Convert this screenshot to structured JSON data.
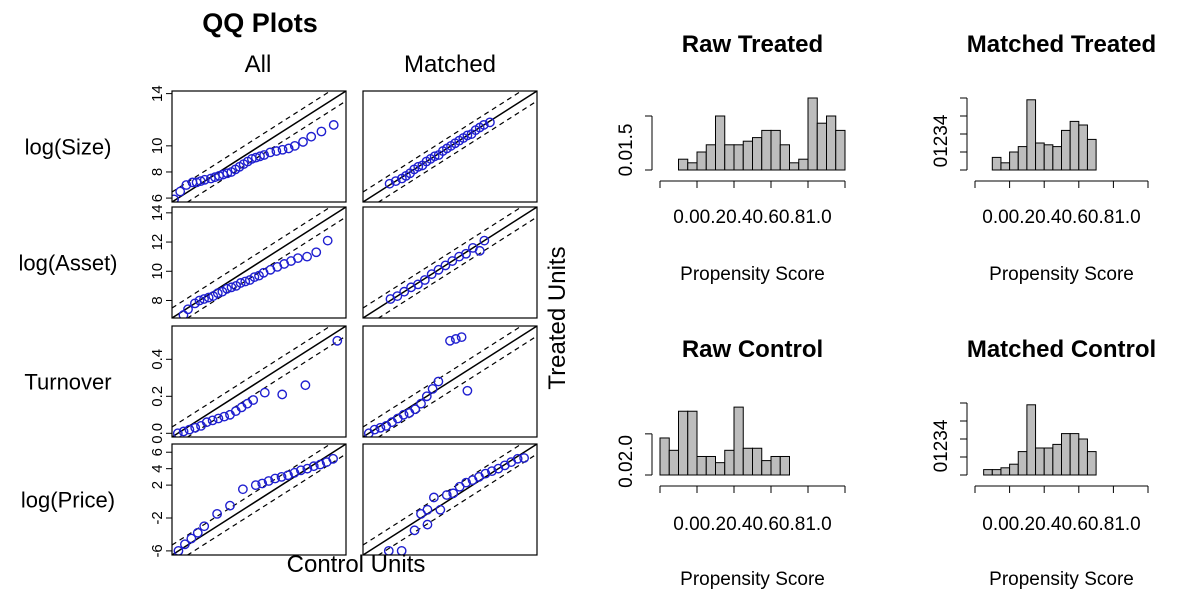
{
  "qq": {
    "title": "QQ Plots",
    "col_headers": [
      "All",
      "Matched"
    ],
    "x_label": "Control Units",
    "y_label": "Treated Units"
  },
  "chart_data": [
    {
      "type": "scatter",
      "title": "QQ Plots",
      "xlabel": "Control Units",
      "ylabel": "Treated Units",
      "columns": [
        "All",
        "Matched"
      ],
      "reference_lines": "solid 45-degree line with dashed band",
      "point_color": "#1f1fd0",
      "panels": [
        {
          "variable": "log(Size)",
          "ticks": [
            "6",
            "8",
            "10",
            "14"
          ],
          "ylim": [
            5.7,
            14.2
          ],
          "All": {
            "x": [
              5.8,
              6.1,
              6.4,
              6.7,
              6.9,
              7.1,
              7.3,
              7.6,
              7.8,
              8.0,
              8.2,
              8.4,
              8.6,
              8.8,
              9.0,
              9.2,
              9.4,
              9.6,
              9.8,
              10.0,
              10.2,
              10.5,
              10.8,
              11.1,
              11.4,
              11.7,
              12.1,
              12.5,
              13.0,
              13.6
            ],
            "y": [
              5.9,
              6.5,
              7.0,
              7.2,
              7.2,
              7.3,
              7.4,
              7.5,
              7.6,
              7.7,
              7.8,
              7.9,
              8.0,
              8.2,
              8.4,
              8.6,
              8.8,
              9.0,
              9.1,
              9.2,
              9.3,
              9.5,
              9.6,
              9.7,
              9.8,
              10.0,
              10.3,
              10.7,
              11.1,
              11.6
            ]
          },
          "Matched": {
            "x": [
              7.0,
              7.3,
              7.6,
              7.8,
              8.0,
              8.2,
              8.4,
              8.6,
              8.8,
              9.0,
              9.2,
              9.4,
              9.6,
              9.8,
              10.0,
              10.2,
              10.4,
              10.6,
              10.8,
              11.0,
              11.2,
              11.4,
              11.6,
              11.9
            ],
            "y": [
              7.1,
              7.3,
              7.5,
              7.7,
              7.9,
              8.2,
              8.4,
              8.5,
              8.8,
              9.0,
              9.2,
              9.3,
              9.6,
              9.8,
              10.0,
              10.2,
              10.4,
              10.6,
              10.8,
              10.9,
              11.2,
              11.4,
              11.6,
              11.8
            ]
          }
        },
        {
          "variable": "log(Asset)",
          "ticks": [
            "8",
            "10",
            "12",
            "14"
          ],
          "ylim": [
            6.8,
            14.4
          ],
          "All": {
            "x": [
              7.3,
              7.5,
              7.8,
              8.0,
              8.2,
              8.4,
              8.6,
              8.8,
              9.0,
              9.2,
              9.4,
              9.6,
              9.8,
              10.0,
              10.2,
              10.4,
              10.6,
              10.8,
              11.1,
              11.4,
              11.7,
              12.0,
              12.3,
              12.7,
              13.1,
              13.6
            ],
            "y": [
              7.0,
              7.4,
              7.8,
              8.0,
              8.1,
              8.2,
              8.3,
              8.5,
              8.6,
              8.8,
              8.9,
              9.0,
              9.2,
              9.3,
              9.4,
              9.6,
              9.7,
              9.9,
              10.1,
              10.3,
              10.5,
              10.7,
              10.9,
              11.0,
              11.3,
              12.1
            ]
          },
          "Matched": {
            "x": [
              8.0,
              8.3,
              8.6,
              8.9,
              9.2,
              9.5,
              9.8,
              10.1,
              10.4,
              10.7,
              11.0,
              11.3,
              11.6,
              11.9,
              12.1
            ],
            "y": [
              8.1,
              8.3,
              8.6,
              8.9,
              9.1,
              9.4,
              9.8,
              10.1,
              10.4,
              10.7,
              11.0,
              11.2,
              11.6,
              11.4,
              12.1
            ]
          }
        },
        {
          "variable": "Turnover",
          "ticks": [
            "0.0",
            "0.2",
            "0.4"
          ],
          "ylim": [
            -0.02,
            0.58
          ],
          "All": {
            "x": [
              0.0,
              0.02,
              0.04,
              0.06,
              0.08,
              0.1,
              0.12,
              0.14,
              0.16,
              0.18,
              0.2,
              0.22,
              0.24,
              0.26,
              0.3,
              0.36,
              0.44,
              0.55
            ],
            "y": [
              0.0,
              0.01,
              0.02,
              0.03,
              0.04,
              0.06,
              0.07,
              0.08,
              0.09,
              0.1,
              0.12,
              0.14,
              0.16,
              0.18,
              0.22,
              0.21,
              0.26,
              0.5
            ]
          },
          "Matched": {
            "x": [
              0.0,
              0.02,
              0.04,
              0.06,
              0.08,
              0.1,
              0.12,
              0.14,
              0.16,
              0.18,
              0.2,
              0.22,
              0.24,
              0.28,
              0.3,
              0.32,
              0.34
            ],
            "y": [
              0.0,
              0.02,
              0.03,
              0.04,
              0.06,
              0.08,
              0.1,
              0.11,
              0.13,
              0.16,
              0.2,
              0.24,
              0.28,
              0.5,
              0.51,
              0.52,
              0.23
            ]
          }
        },
        {
          "variable": "log(Price)",
          "ticks": [
            "-6",
            "-2",
            "2",
            "4",
            "6"
          ],
          "ylim": [
            -6.5,
            7.0
          ],
          "All": {
            "x": [
              -6.0,
              -5.5,
              -5.0,
              -4.5,
              -4.0,
              -3.0,
              -2.0,
              -1.0,
              0.0,
              0.5,
              1.0,
              1.5,
              2.0,
              2.5,
              3.0,
              3.5,
              4.0,
              4.5,
              5.0,
              5.5,
              6.0
            ],
            "y": [
              -6.0,
              -5.2,
              -4.5,
              -3.8,
              -3.0,
              -1.5,
              -0.5,
              1.5,
              2.0,
              2.2,
              2.5,
              2.8,
              3.0,
              3.2,
              3.5,
              3.8,
              4.0,
              4.3,
              4.5,
              4.8,
              5.2
            ]
          },
          "Matched": {
            "x": [
              -4.5,
              -3.5,
              -2.5,
              -1.5,
              -0.5,
              0.0,
              0.5,
              1.0,
              1.5,
              2.0,
              2.5,
              3.0,
              3.5,
              4.0,
              4.5,
              5.0,
              5.5,
              6.0,
              -2.0,
              -1.5,
              -1.0
            ],
            "y": [
              -6.0,
              -6.0,
              -3.5,
              -2.8,
              -1.0,
              0.8,
              1.0,
              1.8,
              2.3,
              2.6,
              3.0,
              3.4,
              3.7,
              4.0,
              4.4,
              4.8,
              5.2,
              5.3,
              -1.5,
              -1.0,
              0.5
            ]
          }
        }
      ]
    },
    {
      "type": "bar",
      "title": "Raw Treated",
      "xlabel": "Propensity Score",
      "xlim": [
        0,
        1
      ],
      "ylim": [
        0,
        2
      ],
      "x_ticks": [
        "0.0",
        "0.2",
        "0.4",
        "0.6",
        "0.8",
        "1.0"
      ],
      "y_ticks": [
        "0.0",
        "1.5"
      ],
      "bin_starts": [
        0.1,
        0.15,
        0.2,
        0.25,
        0.3,
        0.35,
        0.4,
        0.45,
        0.5,
        0.55,
        0.6,
        0.65,
        0.7,
        0.75,
        0.8,
        0.85,
        0.9,
        0.95
      ],
      "values": [
        0.3,
        0.2,
        0.5,
        0.7,
        1.5,
        0.7,
        0.7,
        0.8,
        0.9,
        1.1,
        1.1,
        0.7,
        0.2,
        0.3,
        2.0,
        1.3,
        1.5,
        1.1
      ]
    },
    {
      "type": "bar",
      "title": "Matched Treated",
      "xlabel": "Propensity Score",
      "xlim": [
        0,
        1
      ],
      "ylim": [
        0,
        4
      ],
      "x_ticks": [
        "0.0",
        "0.2",
        "0.4",
        "0.6",
        "0.8",
        "1.0"
      ],
      "y_ticks": [
        "0",
        "1",
        "2",
        "3",
        "4"
      ],
      "bin_starts": [
        0.1,
        0.15,
        0.2,
        0.25,
        0.3,
        0.35,
        0.4,
        0.45,
        0.5,
        0.55,
        0.6,
        0.65
      ],
      "values": [
        0.7,
        0.4,
        1.0,
        1.3,
        3.9,
        1.5,
        1.4,
        1.3,
        2.2,
        2.7,
        2.5,
        1.7
      ]
    },
    {
      "type": "bar",
      "title": "Raw Control",
      "xlabel": "Propensity Score",
      "xlim": [
        0,
        1
      ],
      "ylim": [
        0,
        3.5
      ],
      "x_ticks": [
        "0.0",
        "0.2",
        "0.4",
        "0.6",
        "0.8",
        "1.0"
      ],
      "y_ticks": [
        "0.0",
        "2.0"
      ],
      "bin_starts": [
        0.0,
        0.05,
        0.1,
        0.15,
        0.2,
        0.25,
        0.3,
        0.35,
        0.4,
        0.45,
        0.5,
        0.55,
        0.6,
        0.65
      ],
      "values": [
        1.8,
        1.2,
        3.1,
        3.1,
        0.9,
        0.9,
        0.6,
        1.2,
        3.3,
        1.3,
        1.3,
        0.7,
        0.9,
        0.9
      ]
    },
    {
      "type": "bar",
      "title": "Matched Control",
      "xlabel": "Propensity Score",
      "xlim": [
        0,
        1
      ],
      "ylim": [
        0,
        4
      ],
      "x_ticks": [
        "0.0",
        "0.2",
        "0.4",
        "0.6",
        "0.8",
        "1.0"
      ],
      "y_ticks": [
        "0",
        "1",
        "2",
        "3",
        "4"
      ],
      "bin_starts": [
        0.05,
        0.1,
        0.15,
        0.2,
        0.25,
        0.3,
        0.35,
        0.4,
        0.45,
        0.5,
        0.55,
        0.6,
        0.65
      ],
      "values": [
        0.3,
        0.3,
        0.4,
        0.6,
        1.3,
        3.9,
        1.5,
        1.5,
        1.7,
        2.3,
        2.3,
        2.0,
        1.3
      ]
    }
  ]
}
